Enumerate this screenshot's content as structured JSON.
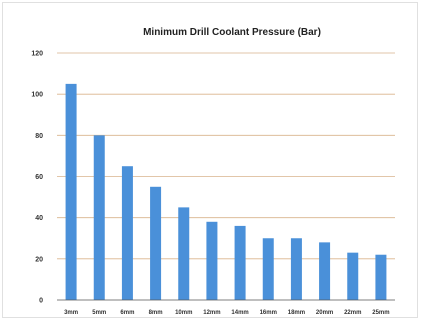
{
  "chart_data": {
    "type": "bar",
    "title": "Minimum Drill Coolant Pressure (Bar)",
    "xlabel": "",
    "ylabel": "",
    "categories": [
      "3mm",
      "5mm",
      "6mm",
      "8mm",
      "10mm",
      "12mm",
      "14mm",
      "16mm",
      "18mm",
      "20mm",
      "22mm",
      "25mm"
    ],
    "values": [
      105,
      80,
      65,
      55,
      45,
      38,
      36,
      30,
      30,
      28,
      23,
      22
    ],
    "ylim": [
      0,
      120
    ],
    "yticks": [
      0,
      20,
      40,
      60,
      80,
      100,
      120
    ],
    "grid": true,
    "legend": "none",
    "colors": {
      "bar": "#4a90d9",
      "grid": "#d9b38c",
      "axis": "#555555"
    }
  }
}
